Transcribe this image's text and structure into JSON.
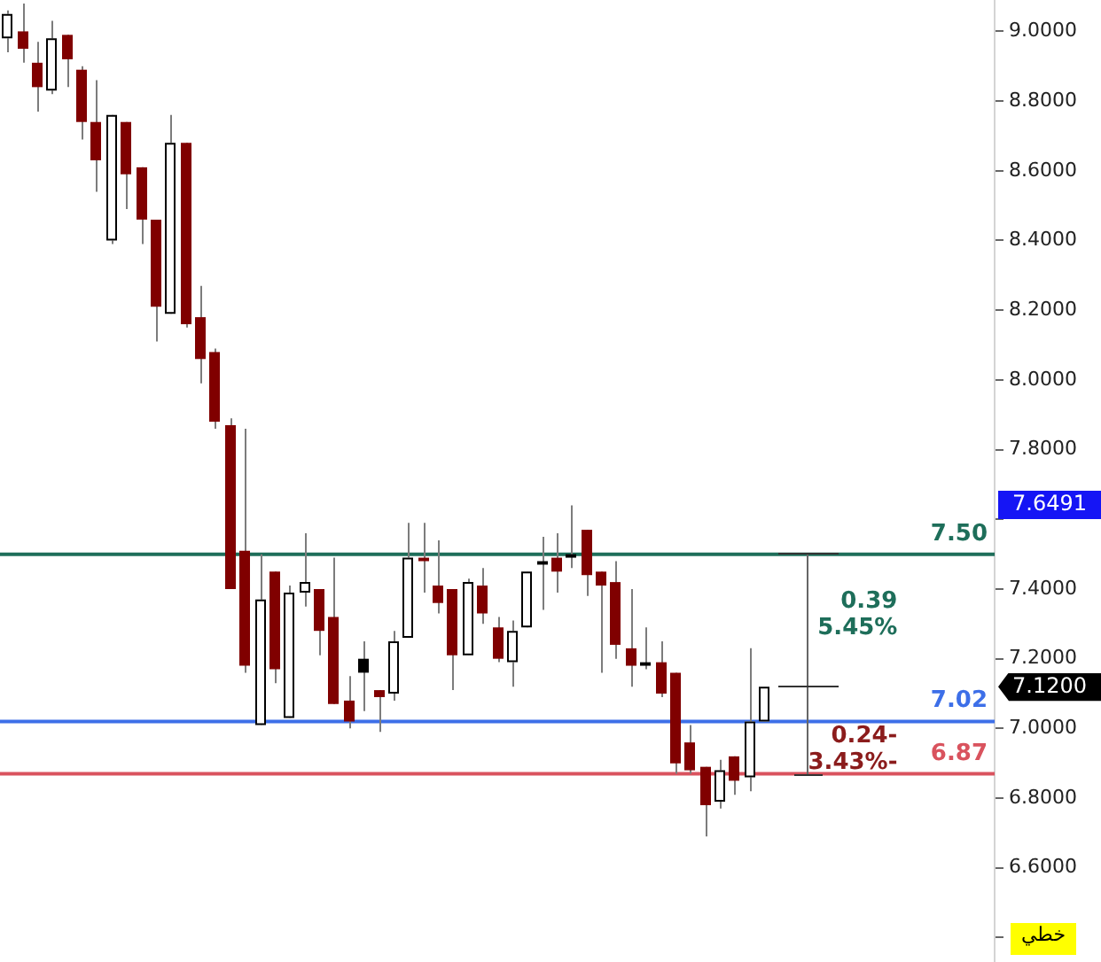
{
  "chart_data": {
    "type": "candlestick",
    "categories": [
      null,
      null,
      null,
      null,
      null,
      null,
      null,
      null,
      null,
      null,
      null,
      null,
      null,
      null,
      null,
      null,
      null,
      null,
      null,
      null,
      null,
      null,
      null,
      null,
      null,
      null,
      null,
      null,
      null,
      null,
      null,
      null,
      null,
      null,
      null,
      null,
      null,
      null,
      null,
      null,
      null,
      null,
      null,
      null,
      null,
      null,
      null,
      null,
      null,
      null,
      null,
      null,
      null,
      null,
      null,
      null,
      null,
      null,
      null,
      null,
      null,
      null,
      null,
      null,
      null,
      null,
      null
    ],
    "ohlc": [
      [
        8.98,
        9.06,
        8.94,
        9.05
      ],
      [
        9.0,
        9.08,
        8.91,
        8.95
      ],
      [
        8.91,
        8.97,
        8.77,
        8.84
      ],
      [
        8.83,
        9.03,
        8.82,
        8.98
      ],
      [
        8.99,
        8.99,
        8.84,
        8.92
      ],
      [
        8.89,
        8.9,
        8.69,
        8.74
      ],
      [
        8.74,
        8.86,
        8.54,
        8.63
      ],
      [
        8.4,
        8.76,
        8.39,
        8.76
      ],
      [
        8.74,
        8.74,
        8.49,
        8.59
      ],
      [
        8.61,
        8.61,
        8.39,
        8.46
      ],
      [
        8.46,
        8.46,
        8.11,
        8.21
      ],
      [
        8.19,
        8.76,
        8.19,
        8.68
      ],
      [
        8.68,
        8.68,
        8.15,
        8.16
      ],
      [
        8.18,
        8.27,
        7.99,
        8.06
      ],
      [
        8.08,
        8.09,
        7.86,
        7.88
      ],
      [
        7.87,
        7.89,
        7.4,
        7.4
      ],
      [
        7.51,
        7.86,
        7.16,
        7.18
      ],
      [
        7.01,
        7.5,
        7.01,
        7.37
      ],
      [
        7.45,
        7.45,
        7.13,
        7.17
      ],
      [
        7.03,
        7.41,
        7.03,
        7.39
      ],
      [
        7.39,
        7.56,
        7.35,
        7.42
      ],
      [
        7.4,
        7.4,
        7.21,
        7.28
      ],
      [
        7.32,
        7.49,
        7.07,
        7.07
      ],
      [
        7.08,
        7.15,
        7.0,
        7.02
      ],
      [
        7.2,
        7.25,
        7.05,
        7.16
      ],
      [
        7.11,
        7.11,
        6.99,
        7.09
      ],
      [
        7.1,
        7.28,
        7.08,
        7.25
      ],
      [
        7.26,
        7.59,
        7.26,
        7.49
      ],
      [
        7.49,
        7.59,
        7.39,
        7.48
      ],
      [
        7.41,
        7.54,
        7.33,
        7.36
      ],
      [
        7.4,
        7.4,
        7.11,
        7.21
      ],
      [
        7.21,
        7.43,
        7.21,
        7.42
      ],
      [
        7.41,
        7.46,
        7.3,
        7.33
      ],
      [
        7.29,
        7.32,
        7.19,
        7.2
      ],
      [
        7.19,
        7.31,
        7.12,
        7.28
      ],
      [
        7.29,
        7.45,
        7.29,
        7.45
      ],
      [
        7.47,
        7.55,
        7.34,
        7.48
      ],
      [
        7.49,
        7.56,
        7.39,
        7.45
      ],
      [
        7.5,
        7.64,
        7.46,
        7.49
      ],
      [
        7.57,
        7.57,
        7.38,
        7.44
      ],
      [
        7.45,
        7.45,
        7.16,
        7.41
      ],
      [
        7.42,
        7.48,
        7.2,
        7.24
      ],
      [
        7.23,
        7.4,
        7.12,
        7.18
      ],
      [
        7.19,
        7.29,
        7.17,
        7.18
      ],
      [
        7.19,
        7.25,
        7.09,
        7.1
      ],
      [
        7.16,
        7.16,
        6.87,
        6.9
      ],
      [
        6.96,
        7.01,
        6.87,
        6.88
      ],
      [
        6.89,
        6.89,
        6.69,
        6.78
      ],
      [
        6.79,
        6.91,
        6.77,
        6.88
      ],
      [
        6.92,
        6.92,
        6.81,
        6.85
      ],
      [
        6.86,
        7.23,
        6.82,
        7.02
      ],
      [
        7.02,
        7.12,
        7.02,
        7.12
      ],
      null,
      null,
      null,
      null,
      null,
      null,
      null,
      null,
      null,
      null,
      null,
      null,
      null,
      null,
      null
    ],
    "colors": [
      "#ffffff",
      "#800000",
      "#800000",
      "#ffffff",
      "#800000",
      "#800000",
      "#800000",
      "#ffffff",
      "#800000",
      "#800000",
      "#800000",
      "#ffffff",
      "#800000",
      "#800000",
      "#800000",
      "#800000",
      "#800000",
      "#ffffff",
      "#800000",
      "#ffffff",
      "#ffffff",
      "#800000",
      "#800000",
      "#800000",
      "#000000",
      "#800000",
      "#ffffff",
      "#ffffff",
      "#800000",
      "#800000",
      "#800000",
      "#ffffff",
      "#800000",
      "#800000",
      "#ffffff",
      "#ffffff",
      "#000000",
      "#800000",
      "#000000",
      "#800000",
      "#800000",
      "#800000",
      "#800000",
      "#000000",
      "#800000",
      "#800000",
      "#800000",
      "#800000",
      "#ffffff",
      "#800000",
      "#ffffff",
      "#ffffff",
      null,
      null,
      null,
      null,
      null,
      null,
      null,
      null,
      null,
      null,
      null,
      null,
      null,
      null,
      null
    ],
    "ylim": [
      6.33,
      9.09
    ],
    "yticks": [
      {
        "value": 6.4,
        "label": null
      },
      {
        "value": 6.6,
        "label": "6.6000"
      },
      {
        "value": 6.8,
        "label": "6.8000"
      },
      {
        "value": 7.0,
        "label": "7.0000"
      },
      {
        "value": 7.2,
        "label": "7.2000"
      },
      {
        "value": 7.4,
        "label": "7.4000"
      },
      {
        "value": 7.6,
        "label": null
      },
      {
        "value": 7.8,
        "label": "7.8000"
      },
      {
        "value": 8.0,
        "label": "8.0000"
      },
      {
        "value": 8.2,
        "label": "8.2000"
      },
      {
        "value": 8.4,
        "label": "8.4000"
      },
      {
        "value": 8.6,
        "label": "8.6000"
      },
      {
        "value": 8.8,
        "label": "8.8000"
      },
      {
        "value": 9.0,
        "label": "9.0000"
      }
    ],
    "tick_labels": "y",
    "ref_lines": [
      {
        "axis": "y",
        "value": 7.5,
        "label": "7.50",
        "color": "#1e6e5a"
      },
      {
        "axis": "y",
        "value": 7.02,
        "label": "7.02",
        "color": "#3d6fe8"
      },
      {
        "axis": "y",
        "value": 6.87,
        "label": "6.87",
        "color": "#d9535e"
      }
    ],
    "annotations": [
      "7.6491",
      "7.1200",
      "0.39\n5.45%",
      "0.24-\n3.43%-",
      "خطي"
    ]
  }
}
